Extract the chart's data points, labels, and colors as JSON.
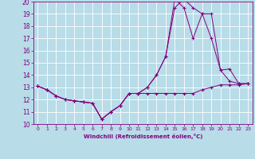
{
  "xlabel": "Windchill (Refroidissement éolien,°C)",
  "xlim": [
    -0.5,
    23.5
  ],
  "ylim": [
    10,
    20
  ],
  "yticks": [
    10,
    11,
    12,
    13,
    14,
    15,
    16,
    17,
    18,
    19,
    20
  ],
  "xticks": [
    0,
    1,
    2,
    3,
    4,
    5,
    6,
    7,
    8,
    9,
    10,
    11,
    12,
    13,
    14,
    15,
    16,
    17,
    18,
    19,
    20,
    21,
    22,
    23
  ],
  "background_color": "#b8dce8",
  "grid_color": "#ffffff",
  "line_color": "#800080",
  "line1_x": [
    0,
    1,
    2,
    3,
    4,
    5,
    6,
    7,
    8,
    9,
    10,
    11,
    12,
    13,
    14,
    15,
    16,
    17,
    18,
    19,
    20,
    21,
    22,
    23
  ],
  "line1_y": [
    13.1,
    12.8,
    12.3,
    12.0,
    11.9,
    11.8,
    11.7,
    10.4,
    11.0,
    11.5,
    12.5,
    12.5,
    12.5,
    12.5,
    12.5,
    12.5,
    12.5,
    12.5,
    12.8,
    13.0,
    13.2,
    13.2,
    13.2,
    13.3
  ],
  "line2_x": [
    0,
    1,
    2,
    3,
    4,
    5,
    6,
    7,
    8,
    9,
    10,
    11,
    12,
    13,
    14,
    15,
    16,
    17,
    18,
    19,
    20,
    21,
    22,
    23
  ],
  "line2_y": [
    13.1,
    12.8,
    12.3,
    12.0,
    11.9,
    11.8,
    11.7,
    10.4,
    11.0,
    11.5,
    12.5,
    12.5,
    13.0,
    14.0,
    15.5,
    20.2,
    19.5,
    17.0,
    19.0,
    19.0,
    14.4,
    14.5,
    13.3,
    13.3
  ],
  "line3_x": [
    0,
    1,
    2,
    3,
    4,
    5,
    6,
    7,
    8,
    9,
    10,
    11,
    12,
    13,
    14,
    15,
    16,
    17,
    18,
    19,
    20,
    21,
    22,
    23
  ],
  "line3_y": [
    13.1,
    12.8,
    12.3,
    12.0,
    11.9,
    11.8,
    11.7,
    10.4,
    11.0,
    11.5,
    12.5,
    12.5,
    13.0,
    14.0,
    15.5,
    19.5,
    20.2,
    19.5,
    19.0,
    17.0,
    14.4,
    13.5,
    13.3,
    13.3
  ]
}
